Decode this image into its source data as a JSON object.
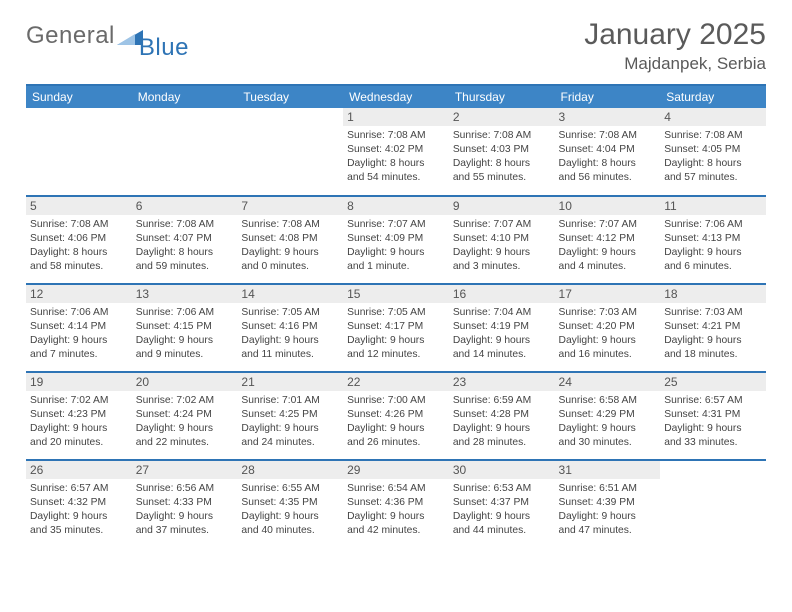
{
  "brand": {
    "word1": "General",
    "word2": "Blue",
    "color_blue": "#2e74b5",
    "color_gray": "#6a6a6a"
  },
  "title": {
    "month": "January 2025",
    "location": "Majdanpek, Serbia"
  },
  "colors": {
    "header_bg": "#3d85c6",
    "rule": "#2e74b5",
    "day_bg": "#ededed"
  },
  "weekdays": [
    "Sunday",
    "Monday",
    "Tuesday",
    "Wednesday",
    "Thursday",
    "Friday",
    "Saturday"
  ],
  "weeks": [
    [
      null,
      null,
      null,
      {
        "n": "1",
        "sr": "7:08 AM",
        "ss": "4:02 PM",
        "dh": "8",
        "dm": "54"
      },
      {
        "n": "2",
        "sr": "7:08 AM",
        "ss": "4:03 PM",
        "dh": "8",
        "dm": "55"
      },
      {
        "n": "3",
        "sr": "7:08 AM",
        "ss": "4:04 PM",
        "dh": "8",
        "dm": "56"
      },
      {
        "n": "4",
        "sr": "7:08 AM",
        "ss": "4:05 PM",
        "dh": "8",
        "dm": "57"
      }
    ],
    [
      {
        "n": "5",
        "sr": "7:08 AM",
        "ss": "4:06 PM",
        "dh": "8",
        "dm": "58"
      },
      {
        "n": "6",
        "sr": "7:08 AM",
        "ss": "4:07 PM",
        "dh": "8",
        "dm": "59"
      },
      {
        "n": "7",
        "sr": "7:08 AM",
        "ss": "4:08 PM",
        "dh": "9",
        "dm": "0"
      },
      {
        "n": "8",
        "sr": "7:07 AM",
        "ss": "4:09 PM",
        "dh": "9",
        "dm": "1"
      },
      {
        "n": "9",
        "sr": "7:07 AM",
        "ss": "4:10 PM",
        "dh": "9",
        "dm": "3"
      },
      {
        "n": "10",
        "sr": "7:07 AM",
        "ss": "4:12 PM",
        "dh": "9",
        "dm": "4"
      },
      {
        "n": "11",
        "sr": "7:06 AM",
        "ss": "4:13 PM",
        "dh": "9",
        "dm": "6"
      }
    ],
    [
      {
        "n": "12",
        "sr": "7:06 AM",
        "ss": "4:14 PM",
        "dh": "9",
        "dm": "7"
      },
      {
        "n": "13",
        "sr": "7:06 AM",
        "ss": "4:15 PM",
        "dh": "9",
        "dm": "9"
      },
      {
        "n": "14",
        "sr": "7:05 AM",
        "ss": "4:16 PM",
        "dh": "9",
        "dm": "11"
      },
      {
        "n": "15",
        "sr": "7:05 AM",
        "ss": "4:17 PM",
        "dh": "9",
        "dm": "12"
      },
      {
        "n": "16",
        "sr": "7:04 AM",
        "ss": "4:19 PM",
        "dh": "9",
        "dm": "14"
      },
      {
        "n": "17",
        "sr": "7:03 AM",
        "ss": "4:20 PM",
        "dh": "9",
        "dm": "16"
      },
      {
        "n": "18",
        "sr": "7:03 AM",
        "ss": "4:21 PM",
        "dh": "9",
        "dm": "18"
      }
    ],
    [
      {
        "n": "19",
        "sr": "7:02 AM",
        "ss": "4:23 PM",
        "dh": "9",
        "dm": "20"
      },
      {
        "n": "20",
        "sr": "7:02 AM",
        "ss": "4:24 PM",
        "dh": "9",
        "dm": "22"
      },
      {
        "n": "21",
        "sr": "7:01 AM",
        "ss": "4:25 PM",
        "dh": "9",
        "dm": "24"
      },
      {
        "n": "22",
        "sr": "7:00 AM",
        "ss": "4:26 PM",
        "dh": "9",
        "dm": "26"
      },
      {
        "n": "23",
        "sr": "6:59 AM",
        "ss": "4:28 PM",
        "dh": "9",
        "dm": "28"
      },
      {
        "n": "24",
        "sr": "6:58 AM",
        "ss": "4:29 PM",
        "dh": "9",
        "dm": "30"
      },
      {
        "n": "25",
        "sr": "6:57 AM",
        "ss": "4:31 PM",
        "dh": "9",
        "dm": "33"
      }
    ],
    [
      {
        "n": "26",
        "sr": "6:57 AM",
        "ss": "4:32 PM",
        "dh": "9",
        "dm": "35"
      },
      {
        "n": "27",
        "sr": "6:56 AM",
        "ss": "4:33 PM",
        "dh": "9",
        "dm": "37"
      },
      {
        "n": "28",
        "sr": "6:55 AM",
        "ss": "4:35 PM",
        "dh": "9",
        "dm": "40"
      },
      {
        "n": "29",
        "sr": "6:54 AM",
        "ss": "4:36 PM",
        "dh": "9",
        "dm": "42"
      },
      {
        "n": "30",
        "sr": "6:53 AM",
        "ss": "4:37 PM",
        "dh": "9",
        "dm": "44"
      },
      {
        "n": "31",
        "sr": "6:51 AM",
        "ss": "4:39 PM",
        "dh": "9",
        "dm": "47"
      },
      null
    ]
  ],
  "labels": {
    "sunrise": "Sunrise:",
    "sunset": "Sunset:",
    "daylight": "Daylight:",
    "hours": "hours",
    "and": "and",
    "minute_singular": "minute.",
    "minute_plural": "minutes."
  }
}
